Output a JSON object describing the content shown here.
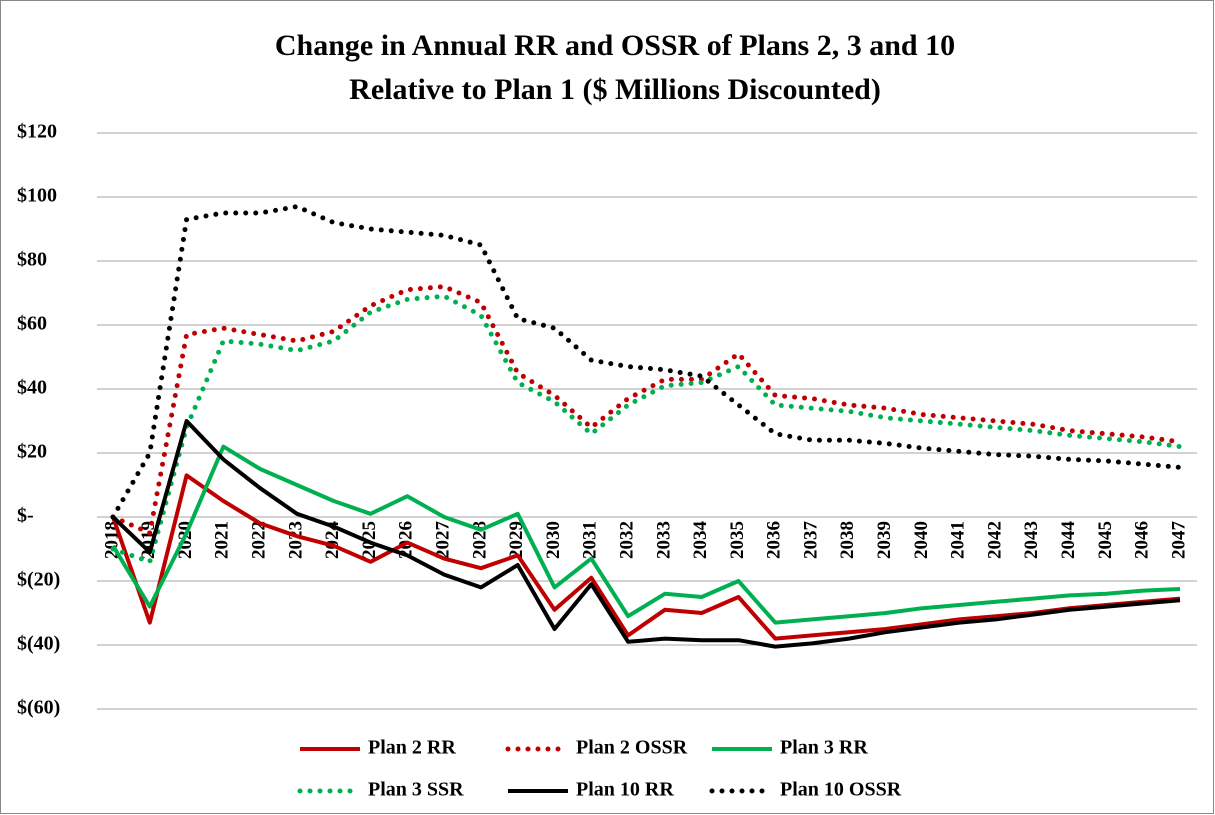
{
  "chart_data": {
    "type": "line",
    "title": [
      "Change in Annual RR and OSSR of Plans 2, 3 and 10",
      "Relative to Plan 1 ($ Millions Discounted)"
    ],
    "categories": [
      "2018",
      "2019",
      "2020",
      "2021",
      "2022",
      "2023",
      "2024",
      "2025",
      "2026",
      "2027",
      "2028",
      "2029",
      "2030",
      "2031",
      "2032",
      "2033",
      "2034",
      "2035",
      "2036",
      "2037",
      "2038",
      "2039",
      "2040",
      "2041",
      "2042",
      "2043",
      "2044",
      "2045",
      "2046",
      "2047"
    ],
    "ylim": [
      -60,
      120
    ],
    "yticks": [
      {
        "value": -60,
        "label": "$(60)"
      },
      {
        "value": -40,
        "label": "$(40)"
      },
      {
        "value": -20,
        "label": "$(20)"
      },
      {
        "value": 0,
        "label": "$-"
      },
      {
        "value": 20,
        "label": "$20"
      },
      {
        "value": 40,
        "label": "$40"
      },
      {
        "value": 60,
        "label": "$60"
      },
      {
        "value": 80,
        "label": "$80"
      },
      {
        "value": 100,
        "label": "$100"
      },
      {
        "value": 120,
        "label": "$120"
      }
    ],
    "grid": true,
    "legend": "bottom",
    "series": [
      {
        "name": "Plan 2 RR",
        "color": "#c00000",
        "style": "solid",
        "values": [
          0,
          -33,
          13,
          5,
          -2,
          -6,
          -9,
          -14,
          -8,
          -13,
          -16,
          -12,
          -29,
          -19,
          -37,
          -29,
          -30,
          -25,
          -38,
          -37,
          -36,
          -35,
          -33.5,
          -32,
          -31,
          -30,
          -28.5,
          -27.5,
          -26.5,
          -25.5
        ]
      },
      {
        "name": "Plan 2 OSSR",
        "color": "#c00000",
        "style": "dotted",
        "values": [
          0,
          -5,
          57,
          59,
          57,
          55,
          58,
          66,
          71,
          72,
          67,
          45,
          38,
          28,
          37,
          43,
          43,
          51,
          38,
          37,
          35,
          34,
          32,
          31,
          30,
          29,
          27,
          26,
          25,
          23.5
        ]
      },
      {
        "name": "Plan 3 RR",
        "color": "#00b050",
        "style": "solid",
        "values": [
          -9,
          -28,
          -5,
          22,
          15,
          10,
          5,
          1,
          6.5,
          0,
          -4,
          1,
          -22,
          -13,
          -31,
          -24,
          -25,
          -20,
          -33,
          -32,
          -31,
          -30,
          -28.5,
          -27.5,
          -26.5,
          -25.5,
          -24.5,
          -24,
          -23,
          -22.5
        ]
      },
      {
        "name": "Plan 3 SSR",
        "color": "#00b050",
        "style": "dotted",
        "values": [
          -10,
          -14,
          28,
          55,
          54,
          52,
          55,
          64,
          68,
          69,
          63,
          42,
          36,
          26,
          35,
          41,
          42,
          47,
          35,
          34,
          33,
          31,
          30,
          29,
          28,
          27,
          25.5,
          24.5,
          23.5,
          22
        ]
      },
      {
        "name": "Plan 10 RR",
        "color": "#000000",
        "style": "solid",
        "values": [
          0,
          -11,
          30,
          18,
          9,
          1,
          -3,
          -8,
          -12,
          -18,
          -22,
          -15,
          -35,
          -21,
          -39,
          -38,
          -38.5,
          -38.5,
          -40.5,
          -39.5,
          -38,
          -36,
          -34.5,
          -33,
          -32,
          -30.5,
          -29,
          -28,
          -27,
          -26
        ]
      },
      {
        "name": "Plan 10 OSSR",
        "color": "#000000",
        "style": "dotted",
        "values": [
          0,
          20,
          93,
          95,
          95,
          97,
          92,
          90,
          89,
          88,
          85,
          62,
          59,
          49,
          47,
          46,
          44,
          35,
          26,
          24,
          24,
          23,
          21.5,
          20.5,
          19.5,
          19,
          18,
          17.5,
          16.5,
          15.5
        ]
      }
    ]
  }
}
